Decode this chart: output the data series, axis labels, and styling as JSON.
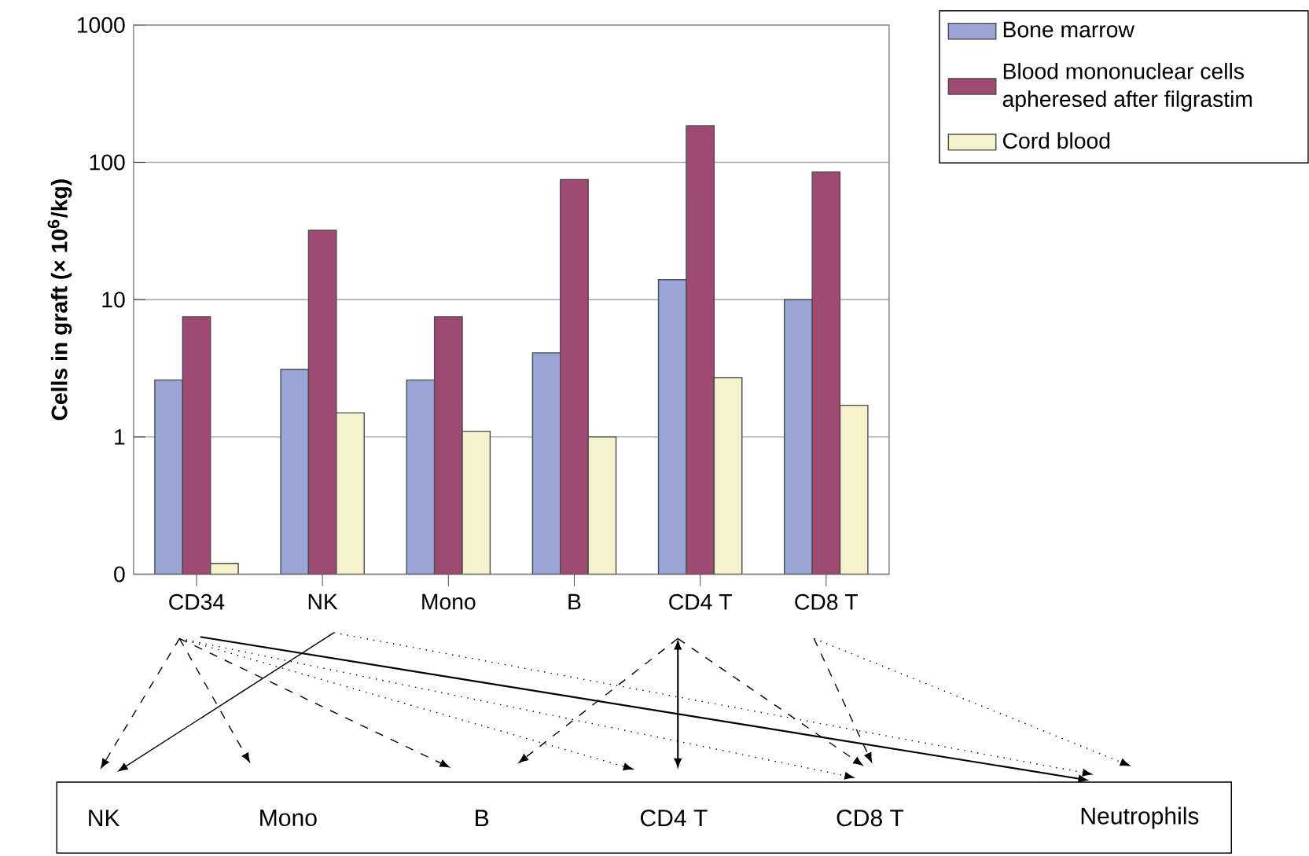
{
  "chart_data": {
    "type": "bar",
    "ylabel": "Cells in graft (× 10$^{6}$/kg)",
    "categories": [
      "CD34",
      "NK",
      "Mono",
      "B",
      "CD4 T",
      "CD8 T"
    ],
    "series": [
      {
        "name": "Bone marrow",
        "color": "#9aa5d5",
        "values": [
          2.6,
          3.1,
          2.6,
          4.1,
          14,
          10
        ]
      },
      {
        "name": "Blood mononuclear cells apheresed after filgrastim",
        "color": "#9e4a72",
        "values": [
          7.5,
          32,
          7.5,
          75,
          185,
          85
        ]
      },
      {
        "name": "Cord blood",
        "color": "#f5f2cc",
        "values": [
          0.12,
          1.5,
          1.1,
          1.0,
          2.7,
          1.7
        ]
      }
    ],
    "log": "y",
    "ylim": [
      0.1,
      1000
    ],
    "yticks": [
      {
        "value": 0.1,
        "label": "0"
      },
      1,
      10,
      100,
      1000
    ],
    "grid": "y",
    "legend": "top right",
    "annotations": [
      "NK",
      "Mono",
      "B",
      "CD4 T",
      "CD8 T",
      "Neutrophils"
    ]
  }
}
